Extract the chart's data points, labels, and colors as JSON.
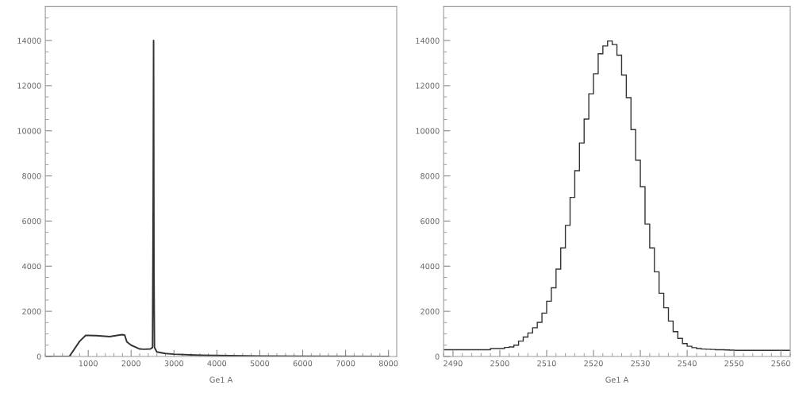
{
  "chart_data": [
    {
      "type": "line",
      "xlabel": "Ge1 A",
      "color": "#333333",
      "x": [
        0,
        560,
        800,
        940,
        1000,
        1200,
        1500,
        1785,
        1850,
        1900,
        2000,
        2100,
        2200,
        2300,
        2450,
        2500,
        2515,
        2524,
        2533,
        2545,
        2600,
        2800,
        3000,
        3500,
        4000,
        5000,
        6000,
        8000
      ],
      "values": [
        0,
        0,
        670,
        930,
        930,
        920,
        880,
        965,
        950,
        650,
        500,
        420,
        330,
        320,
        330,
        400,
        7000,
        14000,
        3750,
        400,
        200,
        130,
        100,
        60,
        40,
        20,
        10,
        0
      ],
      "xlim": [
        0,
        8192
      ],
      "ylim": [
        0,
        15500
      ],
      "xticks": [
        1000,
        2000,
        3000,
        4000,
        5000,
        6000,
        7000,
        8000
      ],
      "yticks": [
        0,
        2000,
        4000,
        6000,
        8000,
        10000,
        12000,
        14000
      ]
    },
    {
      "type": "histogram",
      "xlabel": "Ge1 A",
      "color": "#333333",
      "bins": [
        2488,
        2489,
        2490,
        2491,
        2492,
        2493,
        2494,
        2495,
        2496,
        2497,
        2498,
        2499,
        2500,
        2501,
        2502,
        2503,
        2504,
        2505,
        2506,
        2507,
        2508,
        2509,
        2510,
        2511,
        2512,
        2513,
        2514,
        2515,
        2516,
        2517,
        2518,
        2519,
        2520,
        2521,
        2522,
        2523,
        2524,
        2525,
        2526,
        2527,
        2528,
        2529,
        2530,
        2531,
        2532,
        2533,
        2534,
        2535,
        2536,
        2537,
        2538,
        2539,
        2540,
        2541,
        2542,
        2543,
        2544,
        2545,
        2546,
        2547,
        2548,
        2549,
        2550,
        2551,
        2552,
        2553,
        2554,
        2555,
        2556,
        2557,
        2558,
        2559,
        2560,
        2561,
        2562
      ],
      "values": [
        300,
        300,
        300,
        300,
        300,
        300,
        300,
        300,
        300,
        300,
        350,
        350,
        350,
        400,
        420,
        500,
        680,
        860,
        1040,
        1270,
        1510,
        1920,
        2450,
        3040,
        3870,
        4810,
        5810,
        7050,
        8230,
        9460,
        10520,
        11640,
        12530,
        13410,
        13760,
        13980,
        13820,
        13350,
        12470,
        11470,
        10050,
        8700,
        7520,
        5870,
        4810,
        3750,
        2800,
        2160,
        1570,
        1100,
        800,
        570,
        450,
        390,
        350,
        330,
        320,
        310,
        300,
        300,
        290,
        280,
        270,
        270,
        270,
        270,
        270,
        270,
        270,
        270,
        270,
        270,
        270,
        270
      ],
      "xlim": [
        2488,
        2562
      ],
      "ylim": [
        0,
        15500
      ],
      "xticks": [
        2490,
        2500,
        2510,
        2520,
        2530,
        2540,
        2550,
        2560
      ],
      "yticks": [
        0,
        2000,
        4000,
        6000,
        8000,
        10000,
        12000,
        14000
      ]
    }
  ]
}
